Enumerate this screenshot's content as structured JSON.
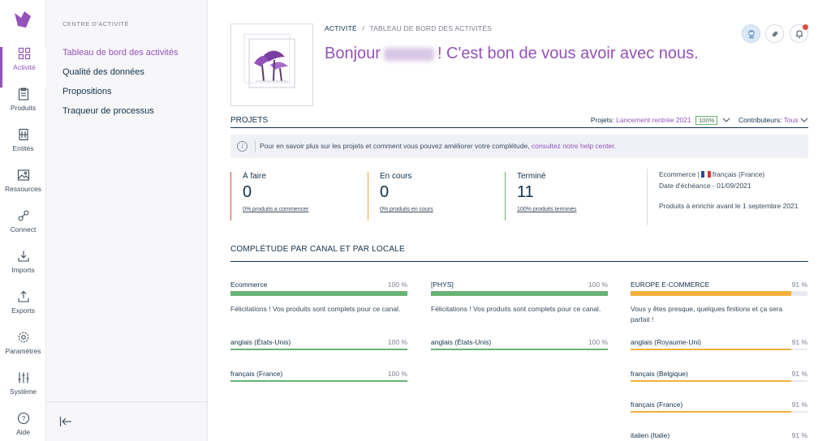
{
  "rail": {
    "items": [
      {
        "label": "Activité",
        "icon": "grid-icon"
      },
      {
        "label": "Produits",
        "icon": "clipboard-icon"
      },
      {
        "label": "Entités",
        "icon": "building-icon"
      },
      {
        "label": "Ressources",
        "icon": "image-icon"
      },
      {
        "label": "Connect",
        "icon": "link-icon"
      },
      {
        "label": "Imports",
        "icon": "import-icon"
      },
      {
        "label": "Exports",
        "icon": "export-icon"
      },
      {
        "label": "Paramètres",
        "icon": "gear-icon"
      },
      {
        "label": "Système",
        "icon": "sliders-icon"
      },
      {
        "label": "Aide",
        "icon": "help-icon"
      }
    ],
    "accent": "#9452ba"
  },
  "subnav": {
    "section": "CENTRE D'ACTIVITÉ",
    "links": [
      "Tableau de bord des activités",
      "Qualité des données",
      "Propositions",
      "Traqueur de processus"
    ]
  },
  "header": {
    "crumb_root": "ACTIVITÉ",
    "crumb_sep": "/",
    "crumb_current": "TABLEAU DE BORD DES ACTIVITÉS",
    "greet_prefix": "Bonjour",
    "greet_suffix": "! C'est bon de vous avoir avec nous."
  },
  "projets": {
    "title": "PROJETS",
    "projets_label": "Projets:",
    "projet_value": "Lancement rentrée 2021",
    "projet_pct": "100%",
    "contrib_label": "Contributeurs:",
    "contrib_value": "Tous",
    "info_text": "Pour en savoir plus sur les projets et comment vous pouvez améliorer votre complétude,",
    "info_link": "consultez notre help center."
  },
  "stats": [
    {
      "title": "À faire",
      "count": "0",
      "link": "0% produits a commencer"
    },
    {
      "title": "En cours",
      "count": "0",
      "link": "0% produits en cours"
    },
    {
      "title": "Terminé",
      "count": "11",
      "link": "100% produits terminés"
    }
  ],
  "meta": {
    "line1_a": "Ecommerce |",
    "line1_b": "français (France)",
    "line2": "Date d'échéance - 01/09/2021",
    "line3": "Produits à enrichir avant le 1 septembre 2021"
  },
  "completude": {
    "title": "COMPLÉTUDE PAR CANAL ET PAR LOCALE",
    "columns": [
      {
        "channel": "Ecommerce",
        "pct_label": "100 %",
        "pct": 100,
        "color": "#67b373",
        "message": "Félicitations ! Vos produits sont complets pour ce canal.",
        "locales": [
          {
            "name": "anglais (États-Unis)",
            "pct_label": "100 %",
            "pct": 100
          },
          {
            "name": "français (France)",
            "pct_label": "100 %",
            "pct": 100
          }
        ]
      },
      {
        "channel": "[PHYS]",
        "pct_label": "100 %",
        "pct": 100,
        "color": "#67b373",
        "message": "Félicitations ! Vos produits sont complets pour ce canal.",
        "locales": [
          {
            "name": "anglais (États-Unis)",
            "pct_label": "100 %",
            "pct": 100
          }
        ]
      },
      {
        "channel": "EUROPE E-COMMERCE",
        "pct_label": "91 %",
        "pct": 91,
        "color": "#f3b03a",
        "message": "Vous y êtes presque, quelques finitions et ça sera parfait !",
        "locales": [
          {
            "name": "anglais (Royaume-Uni)",
            "pct_label": "91 %",
            "pct": 91
          },
          {
            "name": "français (Belgique)",
            "pct_label": "91 %",
            "pct": 91
          },
          {
            "name": "français (France)",
            "pct_label": "91 %",
            "pct": 91
          },
          {
            "name": "italien (Italie)",
            "pct_label": "91 %",
            "pct": 91
          }
        ]
      }
    ]
  }
}
